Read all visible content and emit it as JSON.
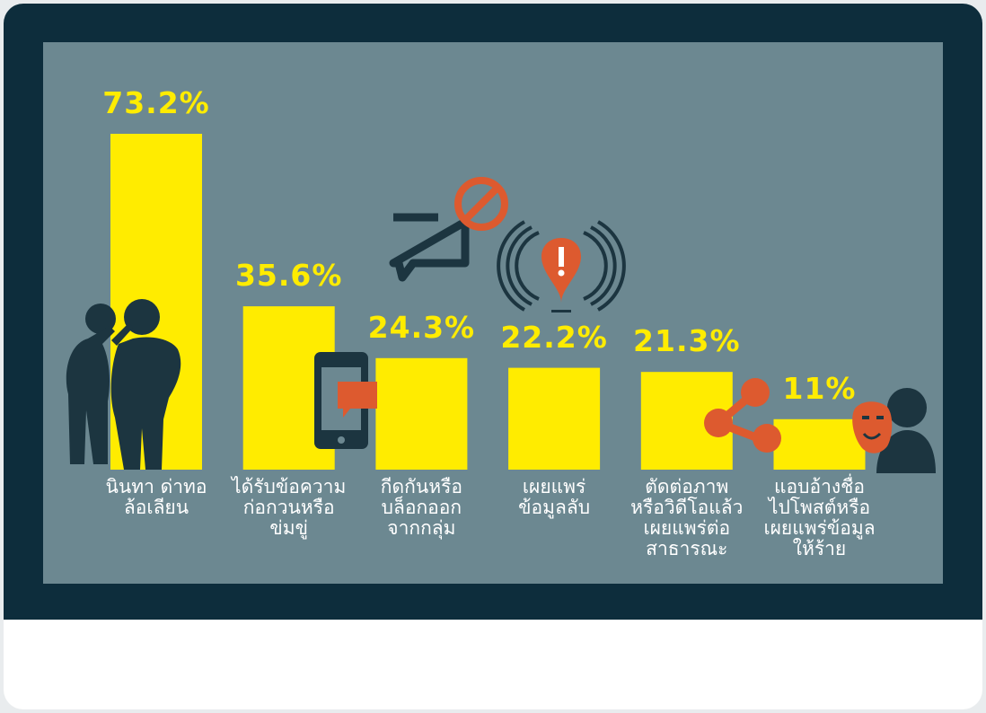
{
  "colors": {
    "frame": "#0d2d3c",
    "screen": "#6c8891",
    "bar": "#ffec00",
    "value_label": "#ffec00",
    "category_label": "#ffffff",
    "icon_dark": "#1c3540",
    "icon_accent": "#dd5a2f",
    "bottom_panel": "#ffffff"
  },
  "chart_data": {
    "type": "bar",
    "title": "",
    "xlabel": "",
    "ylabel": "",
    "ylim": [
      0,
      73.2
    ],
    "grid": false,
    "categories": [
      "นินทา ด่าทอ\nล้อเลียน",
      "ได้รับข้อความ\nก่อกวนหรือ\nข่มขู่",
      "กีดกันหรือ\nบล็อกออก\nจากกลุ่ม",
      "เผยแพร่\nข้อมูลลับ",
      "ตัดต่อภาพ\nหรือวิดีโอแล้ว\nเผยแพร่ต่อ\nสาธารณะ",
      "แอบอ้างชื่อ\nไปโพสต์หรือ\nเผยแพร่ข้อมูล\nให้ร้าย"
    ],
    "values": [
      73.2,
      35.6,
      24.3,
      22.2,
      21.3,
      11
    ],
    "value_labels": [
      "73.2%",
      "35.6%",
      "24.3%",
      "22.2%",
      "21.3%",
      "11%"
    ],
    "icons": [
      "gossiping-people-icon",
      "smartphone-message-icon",
      "blocked-chat-icon",
      "alert-broadcast-icon",
      "share-icon",
      "mask-impersonation-icon"
    ]
  }
}
